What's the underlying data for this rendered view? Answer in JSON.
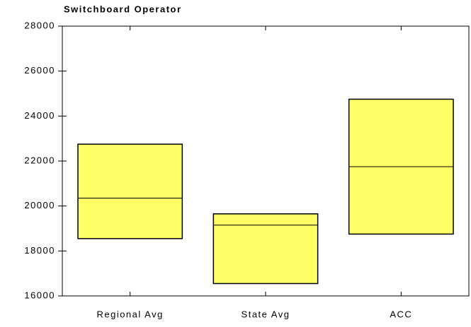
{
  "chart_data": {
    "type": "floating_box",
    "title": "Switchboard Operator",
    "categories": [
      "Regional Avg",
      "State Avg",
      "ACC"
    ],
    "low": [
      18550,
      16550,
      18750
    ],
    "mid": [
      20350,
      19150,
      21750
    ],
    "high": [
      22750,
      19650,
      24750
    ],
    "color": "#ffff66",
    "ylim": [
      16000,
      28000
    ],
    "yticks": [
      16000,
      18000,
      20000,
      22000,
      24000,
      26000,
      28000
    ],
    "grid": false
  }
}
